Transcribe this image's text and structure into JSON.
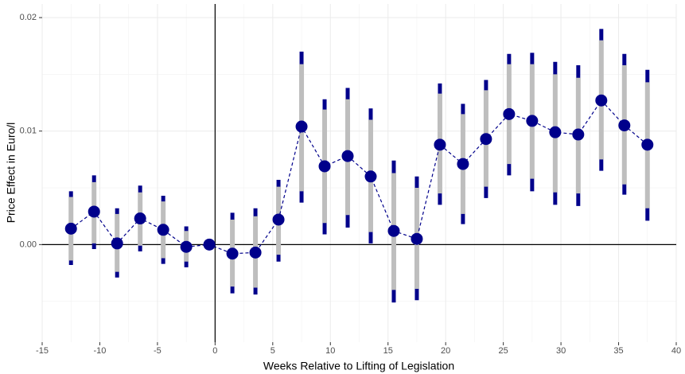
{
  "chart_data": {
    "type": "errorbar",
    "xlabel": "Weeks Relative to Lifting of Legislation",
    "ylabel": "Price Effect in Euro/l",
    "x": [
      -12.5,
      -10.5,
      -8.5,
      -6.5,
      -4.5,
      -2.5,
      -0.5,
      1.5,
      3.5,
      5.5,
      7.5,
      9.5,
      11.5,
      13.5,
      15.5,
      17.5,
      19.5,
      21.5,
      23.5,
      25.5,
      27.5,
      29.5,
      31.5,
      33.5,
      35.5,
      37.5
    ],
    "series": [
      {
        "color": "#00008b",
        "ci_inner_color": "#bebebe",
        "values": [
          0.0014,
          0.0029,
          0.0001,
          0.0023,
          0.0013,
          -0.0002,
          0,
          -0.0008,
          -0.0007,
          0.0022,
          0.0104,
          0.0069,
          0.0078,
          0.006,
          0.0012,
          0.0005,
          0.0088,
          0.0071,
          0.0093,
          0.0115,
          0.0109,
          0.0099,
          0.0097,
          0.0127,
          0.0105,
          0.0088
        ],
        "outer_lower": [
          -0.0018,
          -0.0004,
          -0.0029,
          -0.0006,
          -0.0017,
          -0.002,
          0,
          -0.0043,
          -0.0044,
          -0.0015,
          0.0037,
          0.0009,
          0.0015,
          0.0001,
          -0.0051,
          -0.0049,
          0.0035,
          0.0018,
          0.0041,
          0.0061,
          0.0047,
          0.0035,
          0.0034,
          0.0065,
          0.0044,
          0.0021
        ],
        "outer_upper": [
          0.0047,
          0.0061,
          0.0032,
          0.0052,
          0.0043,
          0.0016,
          0,
          0.0028,
          0.0032,
          0.0057,
          0.017,
          0.0128,
          0.0138,
          0.012,
          0.0074,
          0.006,
          0.0142,
          0.0124,
          0.0145,
          0.0168,
          0.0169,
          0.0161,
          0.0158,
          0.019,
          0.0168,
          0.0154
        ],
        "inner_lower": [
          -0.0014,
          0.0001,
          -0.0024,
          -0.0001,
          -0.0012,
          -0.0015,
          0,
          -0.0037,
          -0.0038,
          -0.0009,
          0.0047,
          0.0019,
          0.0026,
          0.0011,
          -0.004,
          -0.0039,
          0.0045,
          0.0027,
          0.0051,
          0.0071,
          0.0058,
          0.0046,
          0.0045,
          0.0075,
          0.0053,
          0.0032
        ],
        "inner_upper": [
          0.0042,
          0.0055,
          0.0027,
          0.0046,
          0.0038,
          0.0012,
          0,
          0.0022,
          0.0025,
          0.0051,
          0.0159,
          0.0119,
          0.0128,
          0.011,
          0.0063,
          0.005,
          0.0133,
          0.0115,
          0.0136,
          0.0159,
          0.0159,
          0.015,
          0.0147,
          0.018,
          0.0158,
          0.0143
        ]
      }
    ],
    "xlim": [
      -15,
      40
    ],
    "xticks": [
      -15,
      -10,
      -5,
      0,
      5,
      10,
      15,
      20,
      25,
      30,
      35,
      40
    ],
    "ylim": [
      -0.0086,
      0.0212
    ],
    "yticks": [
      {
        "value": 0,
        "label": "0.00"
      },
      0.01,
      0.02
    ],
    "reference_lines": {
      "x": 0,
      "y": 0
    },
    "grid": true
  }
}
